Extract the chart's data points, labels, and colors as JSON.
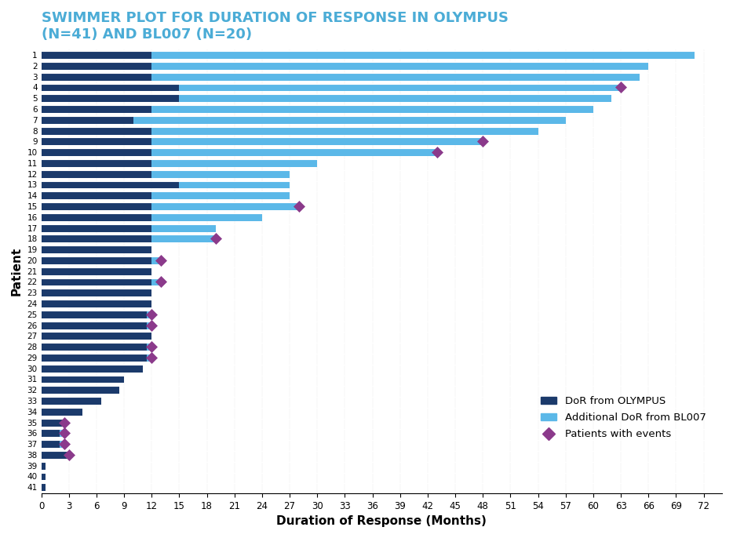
{
  "title": "SWIMMER PLOT FOR DURATION OF RESPONSE IN OLYMPUS\n(N=41) AND BL007 (N=20)",
  "xlabel": "Duration of Response (Months)",
  "ylabel": "Patient",
  "title_color": "#4BACD6",
  "olympus_color": "#1B3A6B",
  "bl007_color": "#5BB8E8",
  "event_color": "#8B3A8B",
  "background_color": "#FFFFFF",
  "xlim": [
    0,
    74
  ],
  "xticks": [
    0,
    3,
    6,
    9,
    12,
    15,
    18,
    21,
    24,
    27,
    30,
    33,
    36,
    39,
    42,
    45,
    48,
    51,
    54,
    57,
    60,
    63,
    66,
    69,
    72
  ],
  "patients": [
    1,
    2,
    3,
    4,
    5,
    6,
    7,
    8,
    9,
    10,
    11,
    12,
    13,
    14,
    15,
    16,
    17,
    18,
    19,
    20,
    21,
    22,
    23,
    24,
    25,
    26,
    27,
    28,
    29,
    30,
    31,
    32,
    33,
    34,
    35,
    36,
    37,
    38,
    39,
    40,
    41
  ],
  "olympus_dur": [
    12.0,
    12.0,
    12.0,
    15.0,
    15.0,
    12.0,
    10.0,
    12.0,
    12.0,
    12.0,
    12.0,
    12.0,
    15.0,
    12.0,
    12.0,
    12.0,
    12.0,
    12.0,
    12.0,
    12.0,
    12.0,
    12.0,
    12.0,
    12.0,
    11.5,
    11.5,
    12.0,
    11.5,
    11.5,
    11.0,
    9.0,
    8.5,
    6.5,
    4.5,
    2.5,
    2.0,
    2.0,
    3.0,
    0.5,
    0.5,
    0.5
  ],
  "bl007_additional": [
    59.0,
    54.0,
    53.0,
    48.0,
    47.0,
    48.0,
    47.0,
    42.0,
    36.0,
    31.0,
    18.0,
    15.0,
    12.0,
    15.0,
    16.0,
    12.0,
    7.0,
    7.0,
    0.0,
    1.0,
    0.0,
    1.0,
    0.0,
    0.0,
    0.5,
    0.5,
    0.0,
    0.5,
    0.5,
    0.0,
    0.0,
    0.0,
    0.0,
    0.0,
    0.0,
    0.5,
    0.5,
    0.0,
    0.0,
    0.0,
    0.0
  ],
  "event_patients": [
    4,
    9,
    10,
    15,
    18,
    20,
    22,
    25,
    26,
    28,
    29,
    35,
    36,
    37,
    38
  ],
  "event_x": [
    63.0,
    48.0,
    43.0,
    28.0,
    19.0,
    13.0,
    13.0,
    12.0,
    12.0,
    12.0,
    12.0,
    2.5,
    2.5,
    2.5,
    3.0
  ]
}
